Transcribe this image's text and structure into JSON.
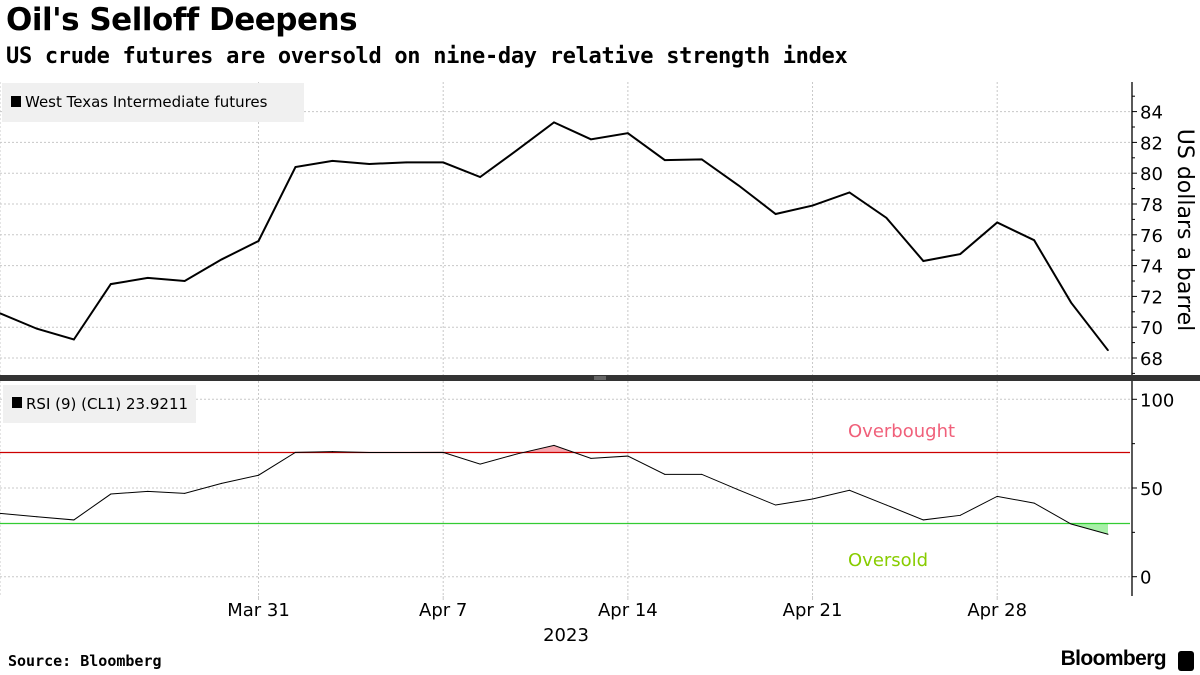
{
  "header": {
    "title": "Oil's Selloff Deepens",
    "subtitle": "US crude futures are oversold on nine-day relative strength index"
  },
  "footer": {
    "source": "Source: Bloomberg",
    "brand": "Bloomberg"
  },
  "chart_data": [
    {
      "type": "line",
      "legend": "West Texas Intermediate futures",
      "legend_placement": "top-left",
      "ylabel": "US dollars a barrel",
      "ylim": [
        67,
        86
      ],
      "yticks": [
        "68",
        "70",
        "72",
        "74",
        "76",
        "78",
        "80",
        "82",
        "84"
      ],
      "grid": true,
      "color": "#000000",
      "x": [
        "2023-03-22",
        "2023-03-23",
        "2023-03-24",
        "2023-03-27",
        "2023-03-28",
        "2023-03-29",
        "2023-03-30",
        "2023-03-31",
        "2023-04-03",
        "2023-04-04",
        "2023-04-05",
        "2023-04-06",
        "2023-04-07",
        "2023-04-10",
        "2023-04-11",
        "2023-04-12",
        "2023-04-13",
        "2023-04-14",
        "2023-04-17",
        "2023-04-18",
        "2023-04-19",
        "2023-04-20",
        "2023-04-21",
        "2023-04-24",
        "2023-04-25",
        "2023-04-26",
        "2023-04-27",
        "2023-04-28",
        "2023-05-01",
        "2023-05-02",
        "2023-05-03"
      ],
      "values": [
        70.9,
        69.9,
        69.2,
        72.8,
        73.2,
        73.0,
        74.4,
        75.6,
        80.4,
        80.8,
        80.6,
        80.7,
        80.7,
        79.75,
        81.5,
        83.3,
        82.2,
        82.6,
        80.85,
        80.9,
        79.2,
        77.35,
        77.9,
        78.75,
        77.1,
        74.3,
        74.75,
        76.8,
        75.65,
        71.6,
        68.5
      ]
    },
    {
      "type": "line",
      "legend": "RSI (9) (CL1) 23.9211",
      "legend_placement": "top-left",
      "ylim": [
        -10,
        110
      ],
      "yticks": [
        "0",
        "50",
        "100"
      ],
      "grid": true,
      "color": "#000000",
      "overbought": {
        "level": 70,
        "label": "Overbought",
        "line_color": "#cc0000",
        "label_color": "#f0607a",
        "fill_color": "#f7a8b0"
      },
      "oversold": {
        "level": 30,
        "label": "Oversold",
        "line_color": "#33cc33",
        "label_color": "#88cc00",
        "fill_color": "#a8f0a8"
      },
      "values": [
        35.7,
        33.8,
        32.0,
        46.6,
        48.1,
        47.0,
        52.6,
        57.2,
        70.1,
        70.5,
        70.0,
        70.0,
        70.1,
        63.5,
        69.2,
        74.0,
        66.7,
        68.0,
        57.7,
        57.7,
        48.9,
        40.4,
        43.8,
        48.7,
        40.4,
        32.0,
        34.6,
        45.3,
        41.5,
        29.7,
        23.92
      ]
    }
  ],
  "xaxis": {
    "tick_labels": [
      {
        "label": "Mar 31",
        "date": "2023-03-31"
      },
      {
        "label": "Apr 7",
        "date": "2023-04-07"
      },
      {
        "label": "Apr 14",
        "date": "2023-04-14"
      },
      {
        "label": "Apr 21",
        "date": "2023-04-21"
      },
      {
        "label": "Apr 28",
        "date": "2023-04-28"
      }
    ],
    "year_label": "2023"
  }
}
